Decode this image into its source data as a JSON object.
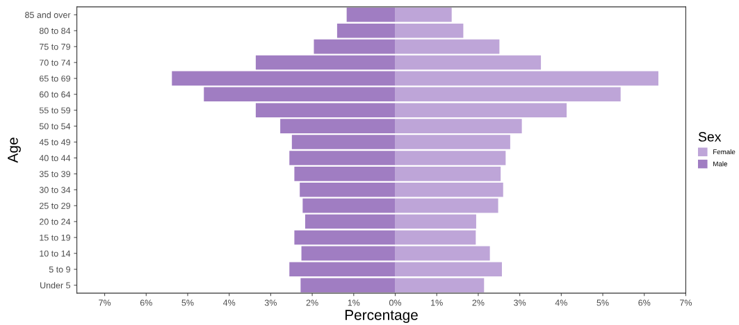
{
  "chart_data": {
    "type": "bar",
    "orientation": "horizontal",
    "xlabel": "Percentage",
    "ylabel": "Age",
    "legend_title": "Sex",
    "categories": [
      "85 and over",
      "80 to 84",
      "75 to 79",
      "70 to 74",
      "65 to 69",
      "60 to 64",
      "55 to 59",
      "50 to 54",
      "45 to 49",
      "40 to 44",
      "35 to 39",
      "30 to 34",
      "25 to 29",
      "20 to 24",
      "15 to 19",
      "10 to 14",
      "5 to 9",
      "Under 5"
    ],
    "series": [
      {
        "name": "Female",
        "color": "#bea5d8",
        "values": [
          1.36,
          1.64,
          2.51,
          3.51,
          6.34,
          5.43,
          4.13,
          3.05,
          2.77,
          2.66,
          2.54,
          2.6,
          2.48,
          1.95,
          1.94,
          2.28,
          2.57,
          2.14
        ]
      },
      {
        "name": "Male",
        "color": "#a07dc2",
        "values": [
          -1.17,
          -1.4,
          -1.96,
          -3.36,
          -5.38,
          -4.61,
          -3.36,
          -2.77,
          -2.49,
          -2.55,
          -2.43,
          -2.3,
          -2.23,
          -2.17,
          -2.43,
          -2.26,
          -2.55,
          -2.28
        ]
      }
    ],
    "xlim": [
      -7.67,
      7
    ],
    "xticks": [
      {
        "value": -7,
        "label": "7%"
      },
      {
        "value": -6,
        "label": "6%"
      },
      {
        "value": -5,
        "label": "5%"
      },
      {
        "value": -4,
        "label": "4%"
      },
      {
        "value": -3,
        "label": "3%"
      },
      {
        "value": -2,
        "label": "2%"
      },
      {
        "value": -1,
        "label": "1%"
      },
      {
        "value": 0,
        "label": "0%"
      },
      {
        "value": 1,
        "label": "1%"
      },
      {
        "value": 2,
        "label": "2%"
      },
      {
        "value": 3,
        "label": "3%"
      },
      {
        "value": 4,
        "label": "4%"
      },
      {
        "value": 5,
        "label": "5%"
      },
      {
        "value": 6,
        "label": "6%"
      },
      {
        "value": 7,
        "label": "7%"
      }
    ],
    "grid": false,
    "legend": "right",
    "stacked": true
  }
}
